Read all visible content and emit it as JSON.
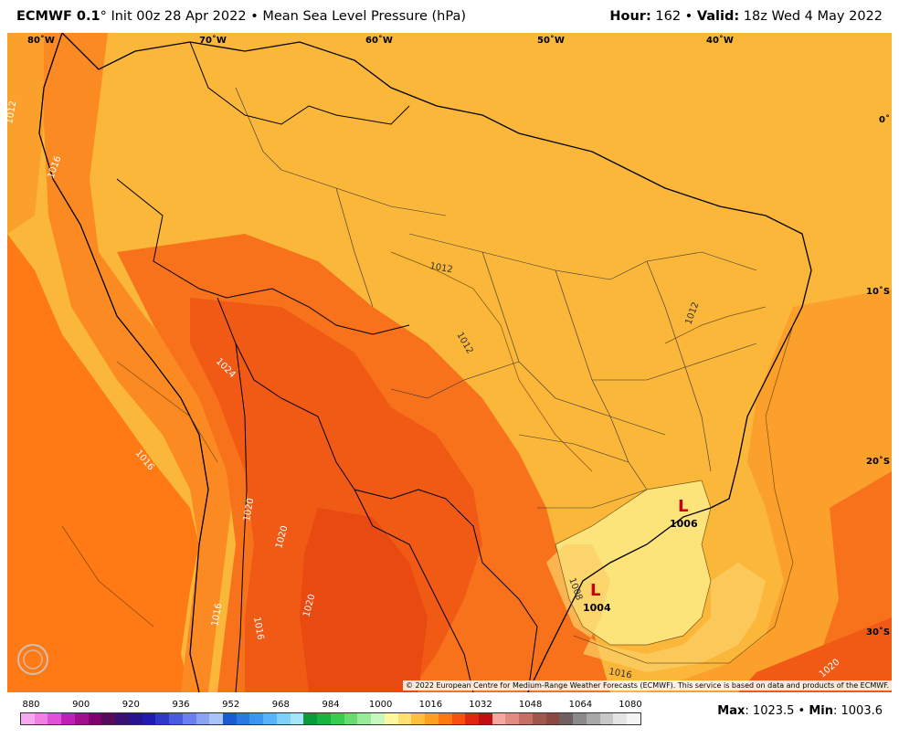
{
  "header": {
    "model_bold": "ECMWF 0.1",
    "model_rest": "° Init 00z 28 Apr 2022 • Mean Sea Level Pressure (hPa)",
    "hour_label": "Hour:",
    "hour_value": " 162 • ",
    "valid_label": "Valid:",
    "valid_value": " 18z Wed 4 May 2022"
  },
  "map": {
    "longitudes": [
      "80˚W",
      "70˚W",
      "60˚W",
      "50˚W",
      "40˚W"
    ],
    "latitudes": [
      "0˚",
      "10˚S",
      "20˚S",
      "30˚S"
    ],
    "isobar_labels": [
      "1012",
      "1012",
      "1012",
      "1016",
      "1016",
      "1020",
      "1020",
      "1024",
      "1016",
      "1016",
      "1020",
      "1016",
      "1012",
      "1008",
      "1020"
    ],
    "lows": [
      {
        "symbol": "L",
        "value": "1006"
      },
      {
        "symbol": "L",
        "value": "1004"
      }
    ],
    "copyright": "© 2022 European Centre for Medium-Range Weather Forecasts (ECMWF). This service is based on data and products of the ECMWF.",
    "logo_text": "WEATHERBELL"
  },
  "scale": {
    "ticks": [
      "880",
      "900",
      "920",
      "936",
      "952",
      "968",
      "984",
      "1000",
      "1016",
      "1032",
      "1048",
      "1064",
      "1080"
    ],
    "colors": [
      "#f7a8f0",
      "#f080e6",
      "#e050d8",
      "#c020b8",
      "#a0108c",
      "#800070",
      "#5a0a5a",
      "#3a1070",
      "#28148c",
      "#201cb0",
      "#3038c8",
      "#4a5ae0",
      "#6a80f0",
      "#8aa4f4",
      "#a8c4f8",
      "#1a5cd0",
      "#2a78e0",
      "#3c96f0",
      "#58b4f8",
      "#80d0fc",
      "#a8e4fc",
      "#0a9a3a",
      "#18b440",
      "#38cc50",
      "#68dc70",
      "#98ec98",
      "#c8f8c0",
      "#fff8a0",
      "#ffe070",
      "#ffc040",
      "#ffa020",
      "#ff7810",
      "#f85010",
      "#e02810",
      "#c01010",
      "#f6a8a0",
      "#e08c80",
      "#c47064",
      "#a0584c",
      "#8a4a40",
      "#706060",
      "#8a8a8a",
      "#a8a8a8",
      "#c8c8c8",
      "#e4e4e4",
      "#f4f4f4"
    ]
  },
  "stats": {
    "max_label": "Max",
    "max_value": ": 1023.5 • ",
    "min_label": "Min",
    "min_value": ": 1003.6"
  }
}
